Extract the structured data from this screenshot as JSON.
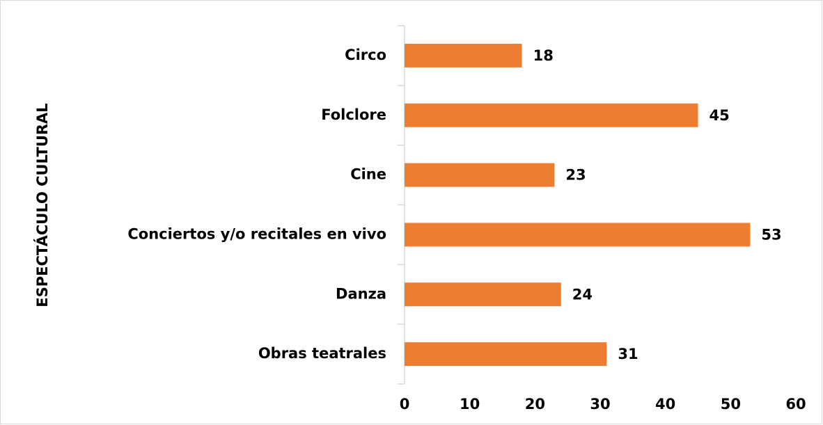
{
  "chart_data": {
    "type": "bar",
    "orientation": "horizontal",
    "y_axis_label": "ESPECTÁCULO CULTURAL",
    "categories": [
      "Circo",
      "Folclore",
      "Cine",
      "Conciertos y/o recitales en vivo",
      "Danza",
      "Obras teatrales"
    ],
    "values": [
      18,
      45,
      23,
      53,
      24,
      31
    ],
    "color": "#ed7d31",
    "xlim": [
      0,
      60
    ],
    "xticks": [
      0,
      10,
      20,
      30,
      40,
      50,
      60
    ],
    "grid": false
  }
}
